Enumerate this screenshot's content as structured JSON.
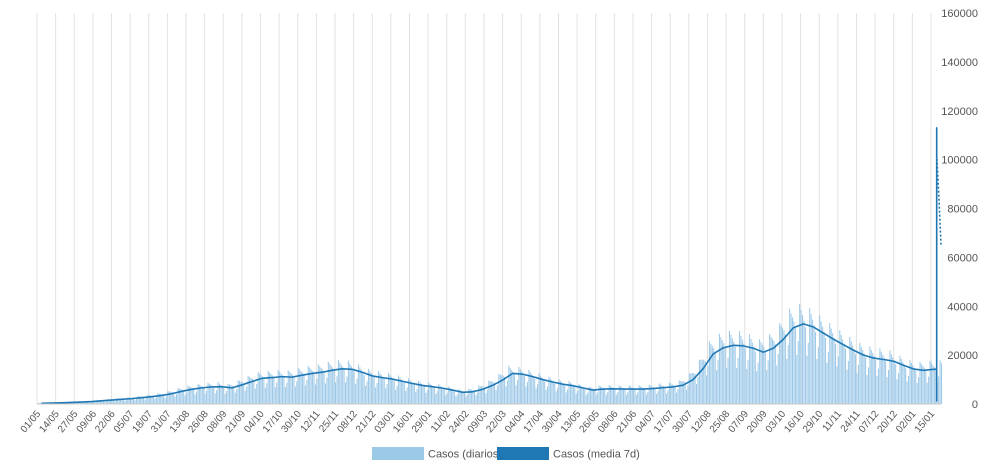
{
  "chart_data": {
    "type": "bar",
    "title": "",
    "xlabel": "",
    "ylabel": "",
    "ylim": [
      0,
      160000
    ],
    "y_ticks": [
      "0",
      "20000",
      "40000",
      "60000",
      "80000",
      "100000",
      "120000",
      "140000",
      "160000"
    ],
    "y_tick_values": [
      0,
      20000,
      40000,
      60000,
      80000,
      100000,
      120000,
      140000,
      160000
    ],
    "grid": "vertical",
    "legend_position": "bottom-center",
    "x_start": "2020-05-01",
    "x_end": "2022-01-22",
    "x_ticks": [
      "01/05",
      "14/05",
      "27/05",
      "09/06",
      "22/06",
      "05/07",
      "18/07",
      "31/07",
      "13/08",
      "26/08",
      "08/09",
      "21/09",
      "04/10",
      "17/10",
      "30/10",
      "12/11",
      "25/11",
      "08/12",
      "21/12",
      "03/01",
      "16/01",
      "29/01",
      "11/02",
      "24/02",
      "09/03",
      "22/03",
      "04/04",
      "17/04",
      "30/04",
      "13/05",
      "26/05",
      "08/06",
      "21/06",
      "04/07",
      "17/07",
      "30/07",
      "12/08",
      "25/08",
      "07/09",
      "20/09",
      "03/10",
      "16/10",
      "29/10",
      "11/11",
      "24/11",
      "07/12",
      "20/12",
      "02/01",
      "15/01"
    ],
    "series": [
      {
        "name": "Casos (diarios)",
        "kind": "bar",
        "color": "#9dc9e8",
        "weekly_avg_daily": [
          300,
          400,
          500,
          650,
          800,
          1000,
          1300,
          1600,
          1900,
          2200,
          2600,
          3000,
          3500,
          4200,
          5200,
          6000,
          6600,
          7000,
          7100,
          6600,
          7800,
          9200,
          10500,
          10800,
          11200,
          11000,
          11800,
          12500,
          13000,
          13800,
          14400,
          14200,
          13000,
          11500,
          10800,
          10200,
          9300,
          8400,
          7600,
          7100,
          6500,
          5700,
          4800,
          5000,
          6000,
          7600,
          9800,
          12500,
          12200,
          11200,
          10000,
          9000,
          8100,
          7500,
          6600,
          5700,
          6100,
          6200,
          6100,
          6100,
          6100,
          6300,
          6700,
          7000,
          7700,
          10000,
          14500,
          20500,
          23000,
          24000,
          23800,
          22800,
          21200,
          22800,
          26500,
          31200,
          32800,
          31500,
          29000,
          26500,
          24200,
          22000,
          20000,
          18800,
          18200,
          17500,
          15800,
          14300,
          13800,
          14200,
          14300,
          13500,
          11500,
          9000,
          7200,
          5800,
          4400,
          3500,
          2800,
          2200,
          1900,
          1700,
          1500,
          1400,
          1300,
          1350,
          1400,
          1500,
          1600,
          1700,
          1800,
          1850,
          1900,
          2000,
          2100,
          2300,
          2700,
          3800,
          9000,
          28000,
          78000,
          113000,
          98000
        ]
      },
      {
        "name": "Casos (media 7d)",
        "kind": "line",
        "color": "#1f78b4",
        "values": [
          300,
          400,
          500,
          650,
          800,
          1000,
          1300,
          1600,
          1900,
          2200,
          2600,
          3000,
          3500,
          4200,
          5200,
          6000,
          6600,
          7000,
          7100,
          6600,
          7800,
          9200,
          10500,
          10800,
          11200,
          11000,
          11800,
          12500,
          13000,
          13800,
          14400,
          14200,
          13000,
          11500,
          10800,
          10200,
          9300,
          8400,
          7600,
          7100,
          6500,
          5700,
          4800,
          5000,
          6000,
          7600,
          9800,
          12500,
          12200,
          11200,
          10000,
          9000,
          8100,
          7500,
          6600,
          5700,
          6100,
          6200,
          6100,
          6100,
          6100,
          6300,
          6700,
          7000,
          7700,
          10000,
          14500,
          20500,
          23000,
          24000,
          23800,
          22800,
          21200,
          22800,
          26500,
          31200,
          32800,
          31500,
          29000,
          26500,
          24200,
          22000,
          20000,
          18800,
          18200,
          17500,
          15800,
          14300,
          13800,
          14200,
          14300,
          13500,
          11500,
          9000,
          7200,
          5800,
          4400,
          3500,
          2800,
          2200,
          1900,
          1700,
          1500,
          1400,
          1300,
          1350,
          1400,
          1500,
          1600,
          1700,
          1800,
          1850,
          1900,
          2000,
          2100,
          2300,
          2700,
          3800,
          9000,
          28000,
          78000,
          113000,
          102000
        ],
        "dotted_tail": [
          102000,
          85000,
          65000
        ]
      }
    ]
  }
}
